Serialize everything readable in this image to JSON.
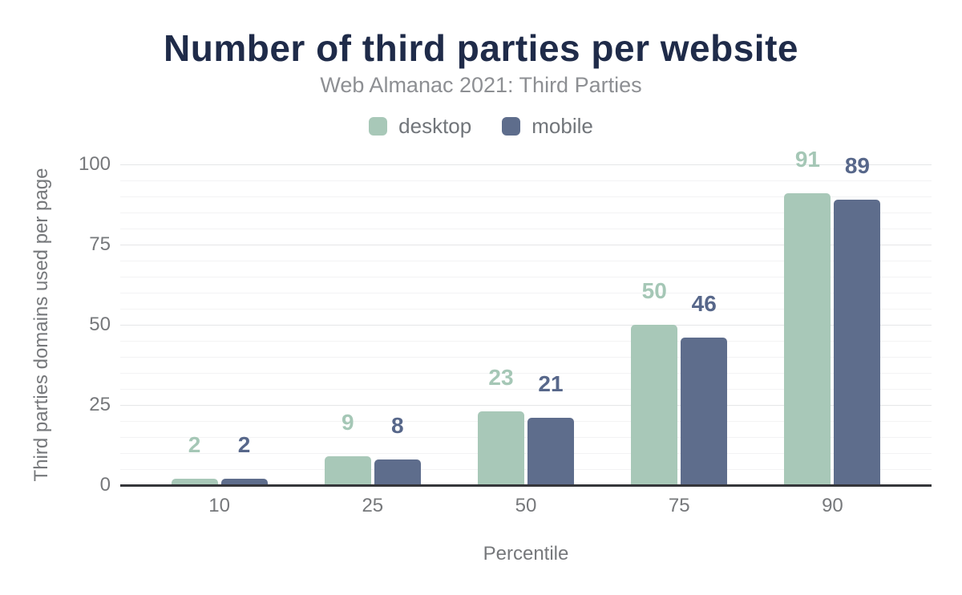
{
  "chart_data": {
    "type": "bar",
    "title": "Number of third parties per website",
    "subtitle": "Web Almanac 2021: Third Parties",
    "categories": [
      "10",
      "25",
      "50",
      "75",
      "90"
    ],
    "series": [
      {
        "name": "desktop",
        "color": "#a8c8b8",
        "label_color": "#a5c7b6",
        "values": [
          2,
          9,
          23,
          50,
          91
        ]
      },
      {
        "name": "mobile",
        "color": "#5e6d8c",
        "label_color": "#57678a",
        "values": [
          2,
          8,
          21,
          46,
          89
        ]
      }
    ],
    "xlabel": "Percentile",
    "ylabel": "Third parties domains used per page",
    "ylim": [
      0,
      100
    ],
    "yticks": [
      0,
      25,
      50,
      75,
      100
    ],
    "minor_grid_step": 5,
    "grid": "on",
    "legend_position": "top"
  },
  "colors": {
    "title": "#1f2b49",
    "subtitle": "#8d8f93",
    "axis_text": "#76787b",
    "axis_line": "#35363a",
    "grid_major": "#e5e6e8",
    "grid_minor": "#f3f3f4",
    "background": "#ffffff"
  }
}
